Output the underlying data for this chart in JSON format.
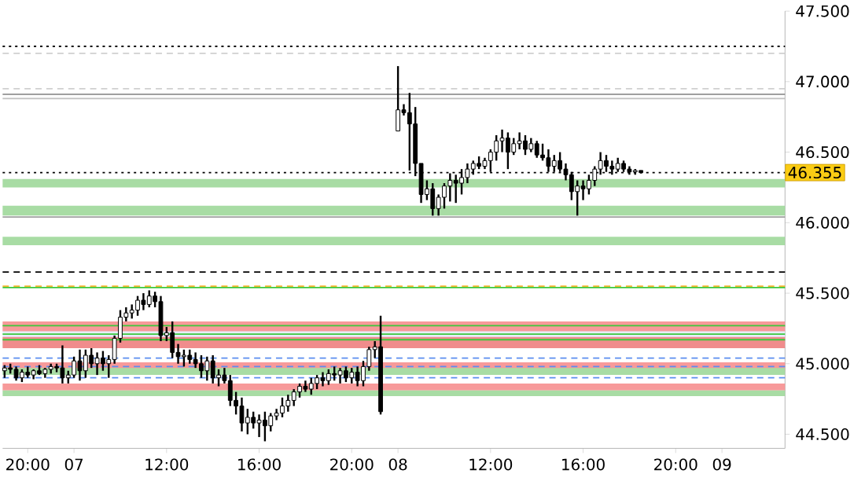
{
  "chart_data": {
    "type": "candlestick",
    "categories": [
      null,
      null,
      null,
      null,
      "20:00",
      null,
      null,
      null,
      null,
      null,
      null,
      null,
      "07",
      null,
      null,
      null,
      null,
      null,
      null,
      null,
      null,
      null,
      null,
      null,
      null,
      null,
      null,
      null,
      "12:00",
      null,
      null,
      null,
      null,
      null,
      null,
      null,
      null,
      null,
      null,
      null,
      null,
      null,
      null,
      null,
      "16:00",
      null,
      null,
      null,
      null,
      null,
      null,
      null,
      null,
      null,
      null,
      null,
      null,
      null,
      null,
      null,
      "20:00",
      null,
      null,
      null,
      null,
      null,
      null,
      null,
      "08",
      null,
      null,
      null,
      null,
      null,
      null,
      null,
      null,
      null,
      null,
      null,
      null,
      null,
      null,
      null,
      "12:00",
      null,
      null,
      null,
      null,
      null,
      null,
      null,
      null,
      null,
      null,
      null,
      null,
      null,
      null,
      null,
      "16:00",
      null,
      null,
      null,
      null,
      null,
      null,
      null,
      null,
      null,
      null,
      null,
      null,
      null,
      null,
      null,
      "20:00",
      null,
      null,
      null,
      null,
      null,
      null,
      null,
      "09",
      null,
      null,
      null,
      null,
      null,
      null,
      null,
      null,
      null,
      null
    ],
    "ohlc": [
      [
        44.95,
        44.99,
        44.9,
        44.97
      ],
      [
        44.97,
        45.0,
        44.93,
        44.96
      ],
      [
        44.96,
        44.98,
        44.88,
        44.9
      ],
      [
        44.9,
        44.96,
        44.87,
        44.94
      ],
      [
        44.94,
        44.98,
        44.9,
        44.92
      ],
      [
        44.92,
        44.96,
        44.89,
        44.95
      ],
      [
        44.95,
        44.99,
        44.92,
        44.93
      ],
      [
        44.93,
        44.97,
        44.9,
        44.96
      ],
      [
        44.96,
        45.0,
        44.93,
        44.98
      ],
      [
        44.98,
        45.0,
        44.94,
        44.97
      ],
      [
        44.97,
        45.13,
        44.86,
        44.9
      ],
      [
        44.9,
        44.95,
        44.86,
        44.92
      ],
      [
        44.92,
        45.05,
        44.9,
        45.02
      ],
      [
        45.02,
        45.1,
        44.88,
        44.95
      ],
      [
        44.95,
        45.1,
        44.9,
        45.06
      ],
      [
        45.06,
        45.11,
        44.97,
        45.0
      ],
      [
        45.0,
        45.08,
        44.92,
        45.04
      ],
      [
        45.04,
        45.09,
        44.95,
        45.0
      ],
      [
        45.0,
        45.06,
        44.9,
        45.03
      ],
      [
        45.03,
        45.2,
        45.0,
        45.18
      ],
      [
        45.18,
        45.38,
        45.15,
        45.33
      ],
      [
        45.33,
        45.4,
        45.3,
        45.36
      ],
      [
        45.36,
        45.42,
        45.32,
        45.38
      ],
      [
        45.38,
        45.48,
        45.34,
        45.45
      ],
      [
        45.45,
        45.5,
        45.38,
        45.42
      ],
      [
        45.42,
        45.52,
        45.4,
        45.48
      ],
      [
        45.48,
        45.51,
        45.4,
        45.44
      ],
      [
        45.44,
        45.48,
        45.16,
        45.2
      ],
      [
        45.2,
        45.26,
        45.16,
        45.22
      ],
      [
        45.22,
        45.3,
        45.04,
        45.08
      ],
      [
        45.08,
        45.14,
        45.0,
        45.05
      ],
      [
        45.05,
        45.1,
        44.98,
        45.06
      ],
      [
        45.06,
        45.1,
        45.0,
        45.03
      ],
      [
        45.03,
        45.08,
        44.97,
        45.0
      ],
      [
        45.0,
        45.06,
        44.9,
        44.95
      ],
      [
        44.95,
        45.05,
        44.88,
        45.02
      ],
      [
        45.02,
        45.06,
        44.86,
        44.9
      ],
      [
        44.9,
        44.96,
        44.84,
        44.92
      ],
      [
        44.92,
        44.97,
        44.86,
        44.88
      ],
      [
        44.88,
        44.92,
        44.7,
        44.74
      ],
      [
        44.74,
        44.8,
        44.64,
        44.7
      ],
      [
        44.7,
        44.76,
        44.52,
        44.58
      ],
      [
        44.58,
        44.68,
        44.5,
        44.62
      ],
      [
        44.62,
        44.66,
        44.54,
        44.58
      ],
      [
        44.58,
        44.64,
        44.48,
        44.6
      ],
      [
        44.6,
        44.66,
        44.45,
        44.56
      ],
      [
        44.56,
        44.65,
        44.52,
        44.63
      ],
      [
        44.63,
        44.68,
        44.6,
        44.65
      ],
      [
        44.65,
        44.76,
        44.62,
        44.7
      ],
      [
        44.7,
        44.78,
        44.66,
        44.74
      ],
      [
        44.74,
        44.82,
        44.7,
        44.8
      ],
      [
        44.8,
        44.86,
        44.76,
        44.84
      ],
      [
        44.84,
        44.88,
        44.8,
        44.82
      ],
      [
        44.82,
        44.9,
        44.78,
        44.86
      ],
      [
        44.86,
        44.92,
        44.82,
        44.9
      ],
      [
        44.9,
        44.94,
        44.84,
        44.88
      ],
      [
        44.88,
        44.96,
        44.85,
        44.93
      ],
      [
        44.93,
        44.98,
        44.88,
        44.92
      ],
      [
        44.92,
        44.97,
        44.86,
        44.95
      ],
      [
        44.95,
        44.98,
        44.87,
        44.9
      ],
      [
        44.9,
        44.97,
        44.86,
        44.94
      ],
      [
        44.94,
        44.98,
        44.84,
        44.88
      ],
      [
        44.88,
        45.02,
        44.84,
        44.98
      ],
      [
        44.98,
        45.12,
        44.95,
        45.1
      ],
      [
        45.1,
        45.16,
        45.04,
        45.12
      ],
      [
        45.12,
        45.34,
        44.64,
        44.66
      ],
      null,
      null,
      [
        46.65,
        47.11,
        46.65,
        46.8
      ],
      [
        46.8,
        46.84,
        46.76,
        46.78
      ],
      [
        46.78,
        46.92,
        46.37,
        46.7
      ],
      [
        46.7,
        46.82,
        46.33,
        46.42
      ],
      [
        46.42,
        46.42,
        46.14,
        46.2
      ],
      [
        46.2,
        46.3,
        46.16,
        46.24
      ],
      [
        46.24,
        46.28,
        46.05,
        46.1
      ],
      [
        46.1,
        46.2,
        46.05,
        46.18
      ],
      [
        46.18,
        46.28,
        46.1,
        46.26
      ],
      [
        46.26,
        46.35,
        46.15,
        46.3
      ],
      [
        46.3,
        46.34,
        46.14,
        46.28
      ],
      [
        46.28,
        46.38,
        46.2,
        46.32
      ],
      [
        46.32,
        46.42,
        46.28,
        46.38
      ],
      [
        46.38,
        46.44,
        46.34,
        46.42
      ],
      [
        46.42,
        46.47,
        46.38,
        46.4
      ],
      [
        46.4,
        46.46,
        46.38,
        46.44
      ],
      [
        46.44,
        46.52,
        46.36,
        46.5
      ],
      [
        46.5,
        46.62,
        46.44,
        46.58
      ],
      [
        46.58,
        46.66,
        46.5,
        46.6
      ],
      [
        46.6,
        46.64,
        46.38,
        46.5
      ],
      [
        46.5,
        46.6,
        46.48,
        46.56
      ],
      [
        46.56,
        46.64,
        46.52,
        46.58
      ],
      [
        46.58,
        46.62,
        46.48,
        46.52
      ],
      [
        46.52,
        46.6,
        46.5,
        46.56
      ],
      [
        46.56,
        46.58,
        46.46,
        46.48
      ],
      [
        46.48,
        46.56,
        46.44,
        46.46
      ],
      [
        46.46,
        46.52,
        46.36,
        46.4
      ],
      [
        46.4,
        46.48,
        46.36,
        46.44
      ],
      [
        46.44,
        46.5,
        46.36,
        46.38
      ],
      [
        46.38,
        46.42,
        46.3,
        46.34
      ],
      [
        46.34,
        46.36,
        46.16,
        46.22
      ],
      [
        46.22,
        46.3,
        46.05,
        46.26
      ],
      [
        46.26,
        46.3,
        46.16,
        46.24
      ],
      [
        46.24,
        46.34,
        46.2,
        46.3
      ],
      [
        46.3,
        46.4,
        46.26,
        46.38
      ],
      [
        46.38,
        46.5,
        46.34,
        46.44
      ],
      [
        46.44,
        46.48,
        46.36,
        46.4
      ],
      [
        46.4,
        46.44,
        46.34,
        46.38
      ],
      [
        46.38,
        46.46,
        46.36,
        46.42
      ],
      [
        46.42,
        46.44,
        46.36,
        46.38
      ],
      [
        46.38,
        46.4,
        46.34,
        46.36
      ],
      [
        46.36,
        46.38,
        46.34,
        46.37
      ],
      [
        46.37,
        46.37,
        46.35,
        46.355
      ],
      null,
      null,
      null,
      null,
      null,
      null,
      null,
      null,
      null,
      null,
      null,
      null,
      null,
      null,
      null,
      null,
      null,
      null,
      null,
      null,
      null,
      null,
      null,
      null
    ],
    "color": "#000000",
    "ylim": [
      44.4,
      47.5
    ],
    "yticks": [
      {
        "value": 44.5,
        "label": "44.500"
      },
      {
        "value": 45.0,
        "label": "45.000"
      },
      {
        "value": 45.5,
        "label": "45.500"
      },
      {
        "value": 46.0,
        "label": "46.000"
      },
      {
        "value": 46.5,
        "label": "46.500"
      },
      {
        "value": 47.0,
        "label": "47.000"
      },
      {
        "value": 47.5,
        "label": "47.500"
      }
    ],
    "bands": [
      {
        "axis": "y",
        "from": 45.12,
        "to": 45.26,
        "color": "#e6ecfa"
      },
      {
        "axis": "y",
        "from": 45.23,
        "to": 45.3,
        "color": "#f79a9a"
      },
      {
        "axis": "y",
        "from": 44.95,
        "to": 45.01,
        "color": "#f79a9a"
      },
      {
        "axis": "y",
        "from": 45.11,
        "to": 45.19,
        "color": "#f08c8c"
      },
      {
        "axis": "y",
        "from": 44.81,
        "to": 44.86,
        "color": "#f79a9a"
      },
      {
        "axis": "y",
        "from": 44.92,
        "to": 44.97,
        "color": "#a8dca4"
      },
      {
        "axis": "y",
        "from": 44.77,
        "to": 44.81,
        "color": "#a8dca4"
      },
      {
        "axis": "y",
        "from": 46.25,
        "to": 46.31,
        "color": "#a8dca4"
      },
      {
        "axis": "y",
        "from": 46.05,
        "to": 46.12,
        "color": "#a8dca4"
      },
      {
        "axis": "y",
        "from": 45.84,
        "to": 45.9,
        "color": "#a8dca4"
      }
    ],
    "ref_lines": [
      {
        "axis": "y",
        "value": 47.25,
        "color": "#000000",
        "line_style": "dotted"
      },
      {
        "axis": "y",
        "value": 47.2,
        "color": "#d0d0d0",
        "line_style": "dashed"
      },
      {
        "axis": "y",
        "value": 46.95,
        "color": "#d0d0d0",
        "line_style": "dashed"
      },
      {
        "axis": "y",
        "value": 46.91,
        "color": "#a0a0a0",
        "line_style": "solid"
      },
      {
        "axis": "y",
        "value": 46.88,
        "color": "#c0c0c0",
        "line_style": "solid"
      },
      {
        "axis": "y",
        "value": 46.04,
        "color": "#a0a0a0",
        "line_style": "solid"
      },
      {
        "axis": "y",
        "value": 45.65,
        "color": "#000000",
        "line_style": "dashed"
      },
      {
        "axis": "y",
        "value": 45.55,
        "color": "#f5b731",
        "line_style": "dashed"
      },
      {
        "axis": "y",
        "value": 45.54,
        "color": "#3cc83c",
        "line_style": "solid"
      },
      {
        "axis": "y",
        "value": 45.27,
        "color": "#3cc83c",
        "line_style": "solid"
      },
      {
        "axis": "y",
        "value": 45.21,
        "color": "#3cc83c",
        "line_style": "solid"
      },
      {
        "axis": "y",
        "value": 45.17,
        "color": "#3cc83c",
        "line_style": "solid"
      },
      {
        "axis": "y",
        "value": 45.04,
        "color": "#5b8ef0",
        "line_style": "dashed"
      },
      {
        "axis": "y",
        "value": 44.98,
        "color": "#5b8ef0",
        "line_style": "dashed"
      },
      {
        "axis": "y",
        "value": 44.9,
        "color": "#5b8ef0",
        "line_style": "dashed"
      },
      {
        "axis": "y",
        "value": 46.355,
        "color": "#000000",
        "line_style": "dotted",
        "label": "46.355"
      }
    ],
    "grid": false
  }
}
